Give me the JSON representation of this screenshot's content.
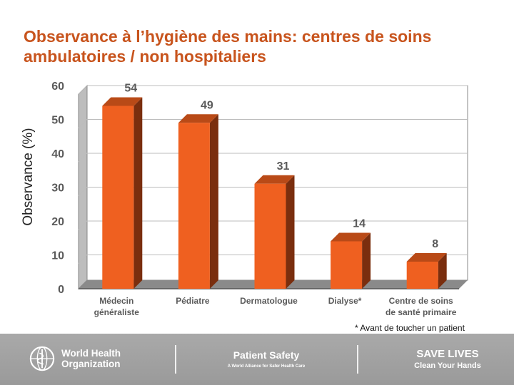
{
  "chart_data": {
    "type": "bar",
    "title": "Observance à l’hygiène des mains: centres de soins ambulatoires / non hospitaliers",
    "ylabel": "Observance  (%)",
    "xlabel": "",
    "ylim": [
      0,
      60
    ],
    "yticks": [
      0,
      10,
      20,
      30,
      40,
      50,
      60
    ],
    "categories": [
      [
        "Médecin",
        "généraliste"
      ],
      [
        "Pédiatre"
      ],
      [
        "Dermatologue"
      ],
      [
        "Dialyse*"
      ],
      [
        "Centre de soins",
        "de santé primaire"
      ]
    ],
    "values": [
      54,
      49,
      31,
      14,
      8
    ],
    "bar_color": "#ef6020",
    "bar_side_color": "#7a2e0e",
    "grid": true,
    "footnote": "* Avant de toucher un patient"
  },
  "footer": {
    "who_line1": "World Health",
    "who_line2": "Organization",
    "patient_safety": "Patient Safety",
    "patient_safety_sub": "A World Alliance for Safer Health Care",
    "save_lives": "SAVE LIVES",
    "clean_hands": "Clean Your Hands"
  }
}
